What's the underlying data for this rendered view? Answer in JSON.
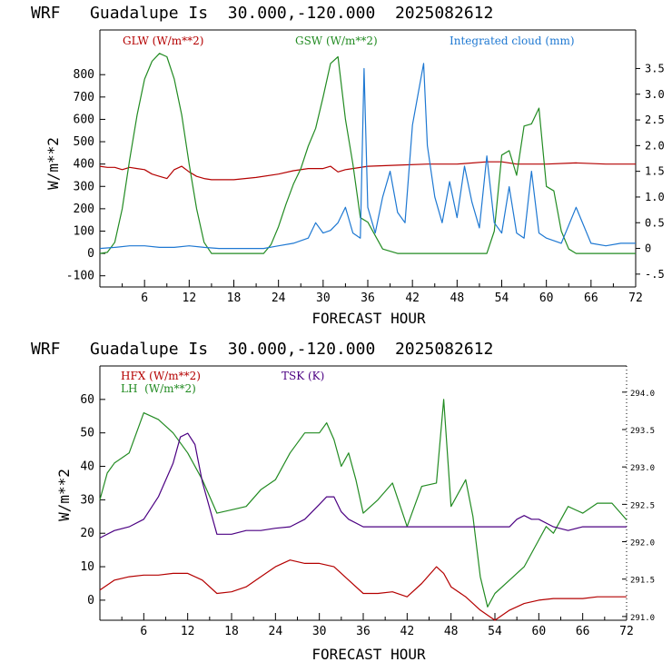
{
  "colors": {
    "red": "#b40000",
    "green": "#228b22",
    "blue": "#1e78d2",
    "purple": "#4b0082"
  },
  "chart_data": [
    {
      "type": "line",
      "title": "WRF   Guadalupe Is  30.000,-120.000  2025082612",
      "xlabel": "FORECAST HOUR",
      "ylabel": "W/m**2",
      "xlim": [
        0,
        72
      ],
      "ylim": [
        -150,
        1000
      ],
      "y2lim": [
        -0.75,
        4.25
      ],
      "xticks": [
        "6",
        "12",
        "18",
        "24",
        "30",
        "36",
        "42",
        "48",
        "54",
        "60",
        "66",
        "72"
      ],
      "yticks": [
        "-100",
        "0",
        "100",
        "200",
        "300",
        "400",
        "500",
        "600",
        "700",
        "800"
      ],
      "y2ticks": [
        "-.5",
        "0",
        "0.5",
        "1.0",
        "1.5",
        "2.0",
        "2.5",
        "3.0",
        "3.5"
      ],
      "series": [
        {
          "name": "GLW (W/m**2)",
          "color": "#b40000",
          "axis": "left",
          "x": [
            0,
            1,
            2,
            3,
            4,
            5,
            6,
            7,
            8,
            9,
            10,
            11,
            12,
            13,
            14,
            15,
            18,
            21,
            24,
            26,
            28,
            30,
            31,
            32,
            33,
            36,
            40,
            44,
            48,
            52,
            54,
            56,
            60,
            64,
            68,
            72
          ],
          "y": [
            390,
            385,
            385,
            375,
            385,
            380,
            375,
            355,
            345,
            335,
            375,
            390,
            365,
            345,
            335,
            330,
            330,
            340,
            355,
            370,
            380,
            380,
            390,
            365,
            375,
            390,
            395,
            400,
            400,
            410,
            410,
            400,
            400,
            405,
            400,
            400
          ]
        },
        {
          "name": "GSW (W/m**2)",
          "color": "#228b22",
          "axis": "left",
          "x": [
            0,
            1,
            2,
            3,
            4,
            5,
            6,
            7,
            8,
            9,
            10,
            11,
            12,
            13,
            14,
            15,
            20,
            22,
            23,
            24,
            25,
            26,
            27,
            28,
            29,
            30,
            31,
            32,
            33,
            34,
            35,
            36,
            37,
            38,
            40,
            44,
            48,
            52,
            53,
            54,
            55,
            56,
            57,
            58,
            59,
            60,
            61,
            62,
            63,
            64,
            68,
            72
          ],
          "y": [
            0,
            5,
            50,
            200,
            420,
            620,
            780,
            860,
            895,
            880,
            780,
            620,
            400,
            200,
            50,
            0,
            0,
            0,
            40,
            120,
            220,
            310,
            380,
            480,
            560,
            700,
            850,
            880,
            600,
            400,
            160,
            140,
            80,
            20,
            0,
            0,
            0,
            0,
            100,
            440,
            460,
            350,
            570,
            580,
            650,
            300,
            280,
            100,
            20,
            0,
            0,
            0
          ]
        },
        {
          "name": "Integrated cloud (mm)",
          "color": "#1e78d2",
          "axis": "right",
          "x": [
            0,
            2,
            4,
            6,
            8,
            10,
            12,
            14,
            16,
            18,
            20,
            22,
            24,
            26,
            28,
            29,
            30,
            31,
            32,
            33,
            34,
            35,
            35.5,
            36,
            37,
            38,
            39,
            40,
            41,
            42,
            43,
            43.5,
            44,
            45,
            46,
            47,
            48,
            49,
            50,
            51,
            52,
            53,
            54,
            55,
            56,
            57,
            58,
            59,
            60,
            62,
            64,
            66,
            68,
            70,
            72
          ],
          "y": [
            0,
            0.02,
            0.05,
            0.05,
            0.02,
            0.02,
            0.05,
            0.02,
            0,
            0,
            0,
            0,
            0.05,
            0.1,
            0.2,
            0.5,
            0.3,
            0.35,
            0.5,
            0.8,
            0.3,
            0.2,
            3.5,
            0.8,
            0.3,
            1.0,
            1.5,
            0.7,
            0.5,
            2.4,
            3.2,
            3.6,
            2.0,
            1.0,
            0.5,
            1.3,
            0.6,
            1.6,
            0.9,
            0.4,
            1.8,
            0.5,
            0.3,
            1.2,
            0.3,
            0.2,
            1.5,
            0.3,
            0.2,
            0.1,
            0.8,
            0.1,
            0.05,
            0.1,
            0.1
          ]
        }
      ]
    },
    {
      "type": "line",
      "title": "WRF   Guadalupe Is  30.000,-120.000  2025082612",
      "xlabel": "FORECAST HOUR",
      "ylabel": "W/m**2",
      "xlim": [
        0,
        72
      ],
      "ylim": [
        -6,
        70
      ],
      "y2lim": [
        290.95,
        294.35
      ],
      "xticks": [
        "6",
        "12",
        "18",
        "24",
        "30",
        "36",
        "42",
        "48",
        "54",
        "60",
        "66",
        "72"
      ],
      "yticks": [
        "0",
        "10",
        "20",
        "30",
        "40",
        "50",
        "60"
      ],
      "y2ticks": [
        "291.0",
        "291.5",
        "292.0",
        "292.5",
        "293.0",
        "293.5",
        "294.0"
      ],
      "series": [
        {
          "name": "HFX (W/m**2)",
          "color": "#b40000",
          "axis": "left",
          "x": [
            0,
            2,
            4,
            6,
            8,
            10,
            12,
            14,
            16,
            18,
            20,
            22,
            24,
            26,
            28,
            30,
            32,
            34,
            36,
            38,
            40,
            42,
            44,
            46,
            47,
            48,
            50,
            52,
            54,
            56,
            58,
            60,
            62,
            64,
            66,
            68,
            70,
            72
          ],
          "y": [
            3,
            6,
            7,
            7.5,
            7.5,
            8,
            8,
            6,
            2,
            2.5,
            4,
            7,
            10,
            12,
            11,
            11,
            10,
            6,
            2,
            2,
            2.5,
            1,
            5,
            10,
            8,
            4,
            1,
            -3,
            -6,
            -3,
            -1,
            0,
            0.5,
            0.5,
            0.5,
            1,
            1,
            1
          ]
        },
        {
          "name": "LH  (W/m**2)",
          "color": "#228b22",
          "axis": "left",
          "x": [
            0,
            1,
            2,
            4,
            6,
            8,
            10,
            12,
            14,
            16,
            18,
            20,
            22,
            24,
            26,
            28,
            30,
            31,
            32,
            33,
            34,
            35,
            36,
            38,
            40,
            42,
            44,
            46,
            47,
            48,
            50,
            51,
            52,
            53,
            54,
            56,
            58,
            60,
            61,
            62,
            64,
            66,
            68,
            70,
            72
          ],
          "y": [
            30,
            38,
            41,
            44,
            56,
            54,
            50,
            44,
            36,
            26,
            27,
            28,
            33,
            36,
            44,
            50,
            50,
            53,
            48,
            40,
            44,
            36,
            26,
            30,
            35,
            22,
            34,
            35,
            60,
            28,
            36,
            25,
            7,
            -2,
            2,
            6,
            10,
            18,
            22,
            20,
            28,
            26,
            29,
            29,
            24
          ]
        },
        {
          "name": "TSK (K)",
          "color": "#4b0082",
          "axis": "right",
          "x": [
            0,
            2,
            4,
            6,
            8,
            10,
            11,
            12,
            13,
            14,
            16,
            18,
            20,
            22,
            24,
            26,
            28,
            30,
            31,
            32,
            33,
            34,
            36,
            38,
            40,
            44,
            48,
            52,
            56,
            57,
            58,
            59,
            60,
            62,
            64,
            66,
            68,
            70,
            72
          ],
          "y": [
            292.05,
            292.15,
            292.2,
            292.3,
            292.6,
            293.05,
            293.4,
            293.45,
            293.3,
            292.8,
            292.1,
            292.1,
            292.15,
            292.15,
            292.18,
            292.2,
            292.3,
            292.5,
            292.6,
            292.6,
            292.4,
            292.3,
            292.2,
            292.2,
            292.2,
            292.2,
            292.2,
            292.2,
            292.2,
            292.3,
            292.35,
            292.3,
            292.3,
            292.2,
            292.15,
            292.2,
            292.2,
            292.2,
            292.2
          ]
        }
      ]
    }
  ]
}
